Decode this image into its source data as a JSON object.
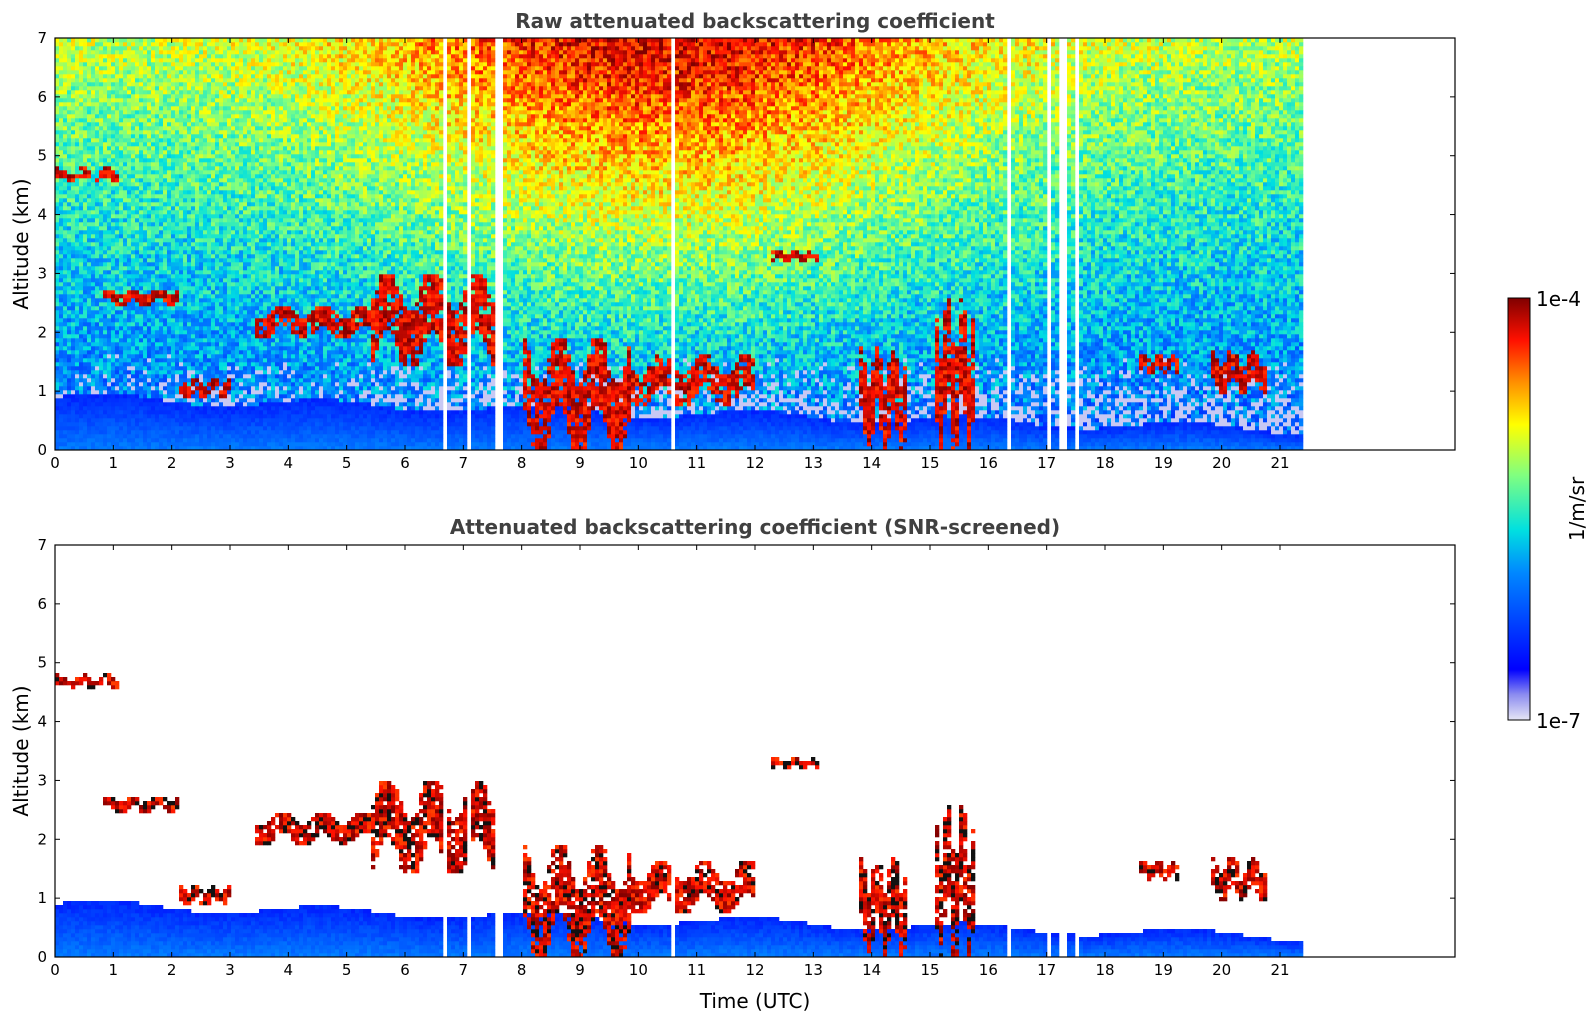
{
  "chart_data": [
    {
      "type": "heatmap",
      "title": "Raw attenuated backscattering coefficient",
      "xlabel": "",
      "ylabel": "Altitude (km)",
      "xlim": [
        0,
        24
      ],
      "ylim": [
        0,
        7
      ],
      "xticks": [
        "0",
        "1",
        "2",
        "3",
        "4",
        "5",
        "6",
        "7",
        "8",
        "9",
        "10",
        "11",
        "12",
        "13",
        "14",
        "15",
        "16",
        "17",
        "18",
        "19",
        "20",
        "21"
      ],
      "yticks": [
        "0",
        "1",
        "2",
        "3",
        "4",
        "5",
        "6",
        "7"
      ],
      "data_extent_hours": 21.45,
      "data_gaps_hours": [
        [
          6.66,
          6.72
        ],
        [
          7.03,
          7.1
        ],
        [
          7.55,
          7.68
        ],
        [
          10.55,
          10.6
        ],
        [
          16.3,
          16.42
        ],
        [
          16.98,
          17.05
        ],
        [
          17.2,
          17.33
        ],
        [
          17.47,
          17.52
        ]
      ],
      "features": [
        {
          "kind": "cloud",
          "x": [
            0.0,
            1.1
          ],
          "y": [
            4.55,
            4.8
          ],
          "level": "high"
        },
        {
          "kind": "cloud",
          "x": [
            0.85,
            2.1
          ],
          "y": [
            2.45,
            2.75
          ],
          "level": "high"
        },
        {
          "kind": "cloud",
          "x": [
            2.15,
            3.0
          ],
          "y": [
            0.85,
            1.25
          ],
          "level": "high"
        },
        {
          "kind": "cloud",
          "x": [
            3.4,
            5.4
          ],
          "y": [
            1.9,
            2.45
          ],
          "level": "high"
        },
        {
          "kind": "cloud",
          "x": [
            5.4,
            7.6
          ],
          "y": [
            1.4,
            3.0
          ],
          "level": "high"
        },
        {
          "kind": "cloud",
          "x": [
            8.0,
            9.9
          ],
          "y": [
            0.0,
            1.9
          ],
          "level": "high"
        },
        {
          "kind": "cloud",
          "x": [
            9.9,
            12.0
          ],
          "y": [
            0.75,
            1.6
          ],
          "level": "high"
        },
        {
          "kind": "cloud",
          "x": [
            12.3,
            13.1
          ],
          "y": [
            3.2,
            3.4
          ],
          "level": "high"
        },
        {
          "kind": "cloud",
          "x": [
            13.8,
            14.6
          ],
          "y": [
            0.0,
            1.8
          ],
          "level": "high"
        },
        {
          "kind": "cloud",
          "x": [
            15.1,
            15.8
          ],
          "y": [
            0.0,
            2.6
          ],
          "level": "high"
        },
        {
          "kind": "cloud",
          "x": [
            18.6,
            19.3
          ],
          "y": [
            1.3,
            1.65
          ],
          "level": "high"
        },
        {
          "kind": "cloud",
          "x": [
            19.8,
            20.8
          ],
          "y": [
            0.95,
            1.7
          ],
          "level": "high"
        },
        {
          "kind": "boundary-layer",
          "x": [
            0.0,
            21.45
          ],
          "y": [
            0.0,
            0.9
          ],
          "level": "low"
        }
      ]
    },
    {
      "type": "heatmap",
      "title": "Attenuated backscattering coefficient (SNR-screened)",
      "xlabel": "Time (UTC)",
      "ylabel": "Altitude (km)",
      "xlim": [
        0,
        24
      ],
      "ylim": [
        0,
        7
      ],
      "xticks": [
        "0",
        "1",
        "2",
        "3",
        "4",
        "5",
        "6",
        "7",
        "8",
        "9",
        "10",
        "11",
        "12",
        "13",
        "14",
        "15",
        "16",
        "17",
        "18",
        "19",
        "20",
        "21"
      ],
      "yticks": [
        "0",
        "1",
        "2",
        "3",
        "4",
        "5",
        "6",
        "7"
      ],
      "data_extent_hours": 21.45,
      "screened": true
    }
  ],
  "colorbar": {
    "label": "1/m/sr",
    "max_label": "1e-4",
    "min_label": "1e-7",
    "scale": "log",
    "colormap": "jet"
  }
}
